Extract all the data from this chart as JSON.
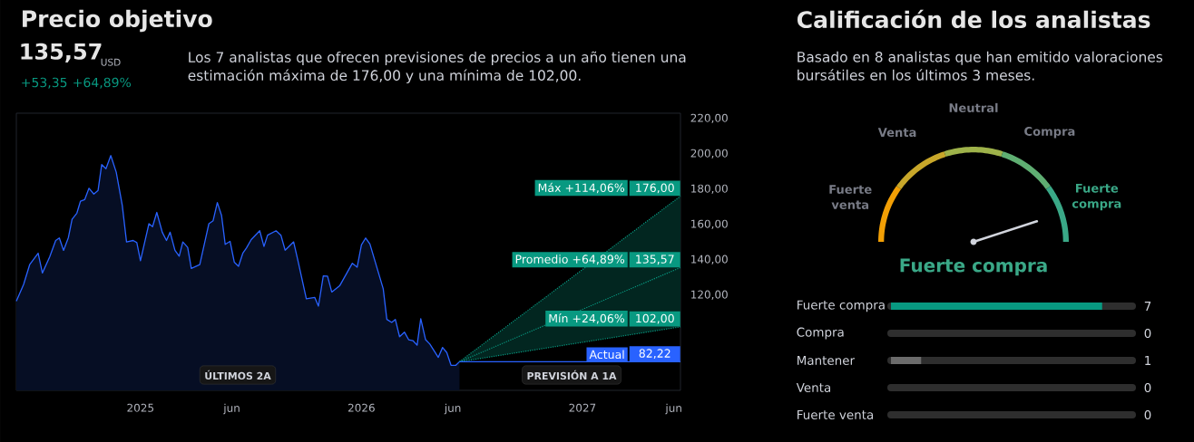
{
  "chart_data": [
    {
      "type": "area",
      "title": "Precio objetivo",
      "subtitle": "135,57",
      "legend": "right",
      "xlim": [
        "2024-06-10",
        "2027-06-12"
      ],
      "ylim": [
        66,
        223
      ],
      "xticks": [
        {
          "value": "2025-01-01",
          "label": "2025"
        },
        {
          "value": "2025-06-01",
          "label": "jun"
        },
        {
          "value": "2026-01-01",
          "label": "2026"
        },
        {
          "value": "2026-06-01",
          "label": "jun"
        },
        {
          "value": "2027-01-01",
          "label": "2027"
        },
        {
          "value": "2027-06-01",
          "label": "jun"
        }
      ],
      "yticks": [
        {
          "value": 120,
          "label": "120,00"
        },
        {
          "value": 140,
          "label": "140,00"
        },
        {
          "value": 160,
          "label": "160,00"
        },
        {
          "value": 180,
          "label": "180,00"
        },
        {
          "value": 200,
          "label": "200,00"
        },
        {
          "value": 220,
          "label": "220,00"
        }
      ],
      "series": [
        {
          "color": "#2962ff",
          "x": [
            "2024-06-10",
            "2024-06-22",
            "2024-07-02",
            "2024-07-16",
            "2024-07-23",
            "2024-08-04",
            "2024-08-14",
            "2024-08-20",
            "2024-08-27",
            "2024-09-04",
            "2024-09-10",
            "2024-09-18",
            "2024-09-24",
            "2024-10-01",
            "2024-10-08",
            "2024-10-16",
            "2024-10-23",
            "2024-10-29",
            "2024-11-05",
            "2024-11-13",
            "2024-11-22",
            "2024-12-02",
            "2024-12-09",
            "2024-12-20",
            "2024-12-26",
            "2025-01-01",
            "2025-01-15",
            "2025-01-21",
            "2025-01-28",
            "2025-02-06",
            "2025-02-13",
            "2025-02-19",
            "2025-02-27",
            "2025-03-06",
            "2025-03-12",
            "2025-03-20",
            "2025-03-26",
            "2025-04-09",
            "2025-04-24",
            "2025-05-01",
            "2025-05-08",
            "2025-05-15",
            "2025-05-21",
            "2025-05-29",
            "2025-06-05",
            "2025-06-12",
            "2025-06-19",
            "2025-06-25",
            "2025-07-03",
            "2025-07-17",
            "2025-07-24",
            "2025-07-30",
            "2025-08-13",
            "2025-08-21",
            "2025-08-28",
            "2025-09-11",
            "2025-09-18",
            "2025-10-02",
            "2025-10-16",
            "2025-10-22",
            "2025-10-30",
            "2025-11-06",
            "2025-11-13",
            "2025-11-26",
            "2025-12-17",
            "2025-12-25",
            "2026-01-01",
            "2026-01-08",
            "2026-01-15",
            "2026-02-06",
            "2026-02-12",
            "2026-02-20",
            "2026-02-26",
            "2026-03-05",
            "2026-03-13",
            "2026-03-20",
            "2026-03-27",
            "2026-04-03",
            "2026-04-09",
            "2026-04-17",
            "2026-04-24",
            "2026-05-08",
            "2026-05-15",
            "2026-05-22",
            "2026-05-29",
            "2026-06-06",
            "2026-06-12"
          ],
          "values": [
            116.5,
            126.0,
            137.2,
            143.7,
            132.5,
            141.5,
            150.9,
            152.3,
            145.3,
            152.6,
            162.9,
            166.4,
            173.2,
            174.1,
            180.5,
            177.2,
            179.3,
            193.9,
            191.6,
            199.0,
            189.6,
            170.7,
            150.1,
            150.9,
            149.7,
            139.4,
            160.4,
            158.7,
            166.8,
            155.6,
            150.9,
            155.6,
            145.3,
            142.0,
            150.1,
            147.0,
            135.1,
            137.2,
            160.4,
            162.1,
            172.4,
            165.0,
            148.7,
            150.4,
            138.6,
            136.3,
            143.6,
            146.6,
            151.4,
            156.4,
            147.5,
            153.9,
            156.4,
            153.9,
            145.4,
            150.1,
            139.7,
            117.9,
            118.6,
            113.7,
            130.8,
            130.7,
            121.7,
            125.2,
            138.0,
            135.8,
            148.4,
            152.3,
            148.9,
            123.5,
            106.2,
            104.5,
            106.2,
            96.4,
            99.0,
            94.7,
            94.2,
            91.6,
            106.6,
            94.7,
            92.2,
            84.7,
            90.3,
            87.4,
            80.2,
            80.2,
            82.22
          ]
        },
        {
          "type": "line",
          "name": "Máx +114,06%",
          "color": "#089981",
          "line_style": "dotted",
          "x": [
            "2026-06-12",
            "2027-06-12"
          ],
          "values": [
            82.22,
            176
          ]
        },
        {
          "type": "line",
          "name": "Promedio +64,89%",
          "color": "#089981",
          "line_style": "dotted",
          "x": [
            "2026-06-12",
            "2027-06-12"
          ],
          "values": [
            82.22,
            135.57
          ],
          "lower": [
            82.22,
            102
          ],
          "upper": [
            82.22,
            176
          ]
        },
        {
          "type": "line",
          "name": "Mín +24,06%",
          "color": "#089981",
          "line_style": "dotted",
          "x": [
            "2026-06-12",
            "2027-06-12"
          ],
          "values": [
            82.22,
            102
          ]
        },
        {
          "type": "line",
          "name": "Actual",
          "color": "#2962ff",
          "x": [
            "2026-06-12",
            "2027-06-12"
          ],
          "values": [
            82.22,
            82.22
          ]
        }
      ],
      "annotations": [
        "USD",
        "+53,35",
        "+64,89%",
        "Los 7 analistas que ofrecen previsiones de precios a un año tienen una estimación máxima de 176,00 y una mínima de 102,00.",
        "ÚLTIMOS 2A",
        "PREVISIÓN A 1A",
        {
          "text": "176,00",
          "x": "2027-06-12",
          "y": 176
        },
        {
          "text": "135,57",
          "x": "2027-06-12",
          "y": 135.57
        },
        {
          "text": "102,00",
          "x": "2027-06-12",
          "y": 102
        },
        {
          "text": "82,22",
          "x": "2027-06-12",
          "y": 82.22
        }
      ]
    },
    {
      "type": "donut",
      "title": "Calificación de los analistas",
      "subtitle": "Basado en 8 analistas que han emitido valoraciones bursátiles en los últimos 3 meses.",
      "categories": [
        "Fuerte venta",
        "Venta",
        "Neutral",
        "Compra",
        "Fuerte compra"
      ],
      "values": [
        20,
        20,
        20,
        20,
        20
      ],
      "colors": [
        "#f29f05",
        "#c8a72a",
        "#9eb24a",
        "#5fae72",
        "#3aa887"
      ],
      "needle": "Fuerte compra",
      "annotations": [
        "Fuerte compra"
      ]
    },
    {
      "type": "bar",
      "orientation": "horizontal",
      "categories": [
        "Fuerte compra",
        "Compra",
        "Mantener",
        "Venta",
        "Fuerte venta"
      ],
      "values": [
        7,
        0,
        1,
        0,
        0
      ],
      "colors": [
        "#089981",
        "#089981",
        "#6b6b6b",
        "#f23645",
        "#f23645"
      ],
      "xlim": [
        0,
        8
      ],
      "data_labels": true,
      "tick_labels": "y"
    }
  ]
}
